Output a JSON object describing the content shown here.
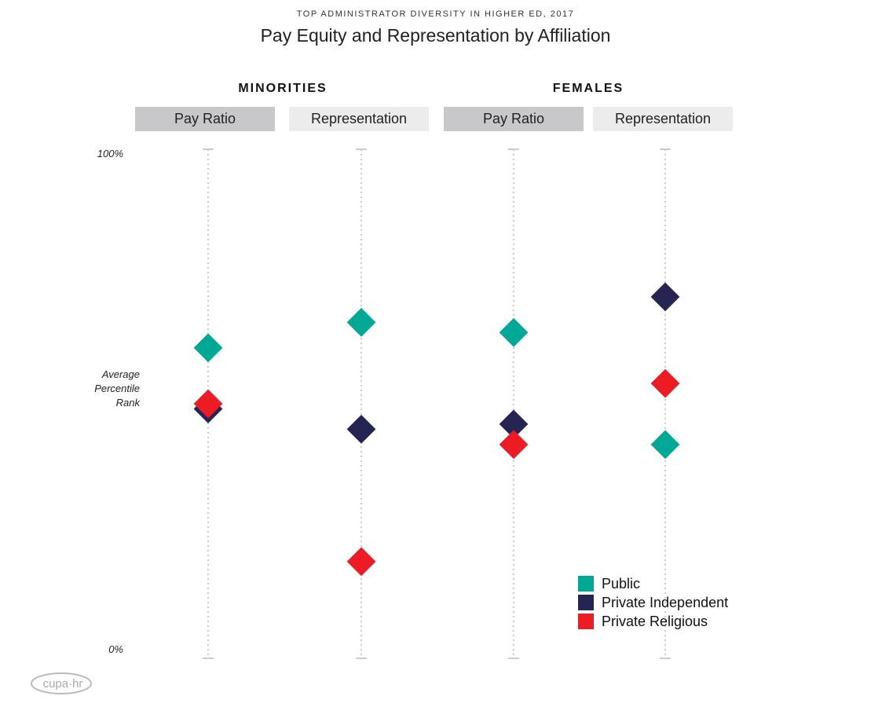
{
  "chart_data": {
    "type": "scatter",
    "supertitle": "TOP ADMINISTRATOR DIVERSITY IN HIGHER ED, 2017",
    "title": "Pay Equity and Representation by Affiliation",
    "ylabel": "Average Percentile Rank",
    "ylim": [
      0,
      100
    ],
    "ytick_labels": [
      "100%",
      "0%"
    ],
    "groups": [
      {
        "label": "MINORITIES",
        "columns": [
          "Pay Ratio",
          "Representation"
        ]
      },
      {
        "label": "FEMALES",
        "columns": [
          "Pay Ratio",
          "Representation"
        ]
      }
    ],
    "categories": [
      "Minorities Pay Ratio",
      "Minorities Representation",
      "Females Pay Ratio",
      "Females Representation"
    ],
    "series": [
      {
        "name": "Public",
        "color": "#00a896",
        "values": [
          61,
          66,
          64,
          42
        ]
      },
      {
        "name": "Private Independent",
        "color": "#262452",
        "values": [
          49,
          45,
          46,
          71
        ]
      },
      {
        "name": "Private Religious",
        "color": "#ed1c24",
        "values": [
          50,
          19,
          42,
          54
        ]
      }
    ],
    "legend_position": "bottom-right"
  },
  "logo_text": "cupa·hr"
}
